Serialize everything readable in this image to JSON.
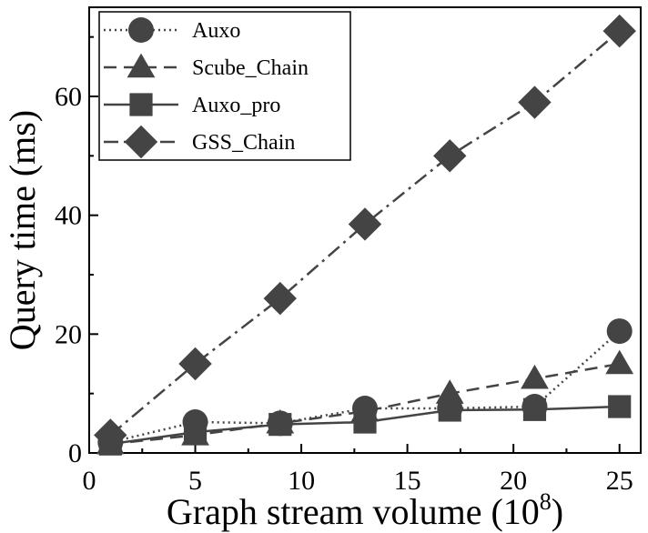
{
  "chart_data": {
    "type": "line",
    "xlabel": "Graph stream volume (10",
    "xlabel_sup": "8",
    "xlabel_suffix": ")",
    "ylabel": "Query time (ms)",
    "xlim": [
      0,
      26
    ],
    "ylim": [
      0,
      75
    ],
    "x_ticks": [
      0,
      5,
      10,
      15,
      20,
      25
    ],
    "y_ticks": [
      0,
      20,
      40,
      60
    ],
    "grid": false,
    "legend_position": "top-left",
    "x": [
      1,
      5,
      9,
      13,
      17,
      21,
      25
    ],
    "series": [
      {
        "name": "Auxo",
        "values": [
          1.8,
          5.2,
          5.0,
          7.5,
          7.5,
          7.8,
          20.5
        ],
        "marker": "circle",
        "dash": "dotted",
        "color": "#444444"
      },
      {
        "name": "Scube_Chain",
        "values": [
          1.5,
          3.0,
          5.0,
          7.0,
          10.0,
          12.5,
          15.0
        ],
        "marker": "triangle",
        "dash": "dash",
        "color": "#444444"
      },
      {
        "name": "Auxo_pro",
        "values": [
          1.5,
          3.5,
          4.8,
          5.2,
          7.2,
          7.3,
          7.8
        ],
        "marker": "square",
        "dash": "solid",
        "color": "#444444"
      },
      {
        "name": "GSS_Chain",
        "values": [
          3.0,
          15.0,
          26.0,
          38.5,
          50.0,
          59.0,
          71.0
        ],
        "marker": "diamond",
        "dash": "dashdot",
        "color": "#444444"
      }
    ]
  }
}
